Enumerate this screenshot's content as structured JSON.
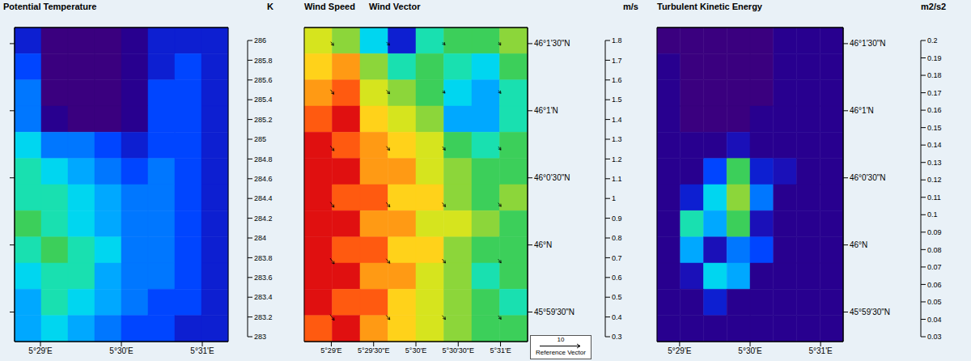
{
  "chart_data": [
    {
      "type": "heatmap",
      "title": "Potential Temperature",
      "xlim": [
        5.478,
        5.522
      ],
      "ylim": [
        45.988,
        46.027
      ],
      "xticks": [
        {
          "value": 5.483333,
          "label": "5°29'E"
        },
        {
          "value": 5.5,
          "label": "5°30'E"
        },
        {
          "value": 5.516667,
          "label": "5°31'E"
        }
      ],
      "yticks": [
        {
          "value": 45.991667,
          "label": "45°59'30\"N"
        },
        {
          "value": 46,
          "label": "46°N"
        },
        {
          "value": 46.008333,
          "label": "46°0'30\"N"
        },
        {
          "value": 46.016667,
          "label": "46°1'N"
        },
        {
          "value": 46.025,
          "label": "46°1'30\"N"
        }
      ],
      "tick_labels": "x",
      "lon_edges": [
        5.478,
        5.4835,
        5.489,
        5.4945,
        5.5,
        5.5055,
        5.511,
        5.5165,
        5.522
      ],
      "lat_edges": [
        46.027,
        46.02375,
        46.0205,
        46.01725,
        46.014,
        46.01075,
        46.0075,
        46.00425,
        46.001,
        45.99775,
        45.9945,
        45.99125,
        45.988
      ],
      "cells": [
        [
          283.5,
          283.1,
          283.1,
          283.1,
          283.3,
          283.5,
          283.5,
          283.5
        ],
        [
          283.7,
          283.1,
          283.0,
          283.1,
          283.2,
          283.5,
          283.6,
          283.5
        ],
        [
          283.8,
          283.1,
          283.0,
          283.0,
          283.2,
          283.6,
          283.7,
          283.5
        ],
        [
          283.9,
          283.2,
          283.1,
          283.1,
          283.3,
          283.6,
          283.6,
          283.5
        ],
        [
          284.2,
          283.9,
          283.8,
          283.7,
          283.5,
          283.7,
          283.6,
          283.4
        ],
        [
          284.4,
          284.3,
          284.1,
          283.9,
          283.7,
          283.8,
          283.7,
          283.5
        ],
        [
          284.5,
          284.4,
          284.2,
          284.0,
          283.8,
          283.8,
          283.6,
          283.5
        ],
        [
          284.6,
          284.5,
          284.3,
          284.1,
          283.9,
          283.9,
          283.7,
          283.5
        ],
        [
          284.4,
          284.6,
          284.4,
          284.2,
          283.9,
          283.8,
          283.7,
          283.5
        ],
        [
          284.3,
          284.5,
          284.4,
          284.1,
          283.8,
          283.8,
          283.6,
          283.5
        ],
        [
          284.1,
          284.4,
          284.3,
          284.0,
          283.8,
          283.7,
          283.6,
          283.5
        ],
        [
          284.0,
          284.2,
          284.1,
          283.9,
          283.7,
          283.7,
          283.5,
          283.4
        ]
      ],
      "colorbar": {
        "label": "K",
        "ylim": [
          283,
          286
        ],
        "yticks": [
          283,
          283.2,
          283.4,
          283.6,
          283.8,
          284,
          284.2,
          284.4,
          284.6,
          284.8,
          285,
          285.2,
          285.4,
          285.6,
          285.8,
          286
        ],
        "colors": [
          "#3a007f",
          "#28008f",
          "#0d1fd1",
          "#0045ff",
          "#0077ff",
          "#00a8ff",
          "#00d6f0",
          "#19e0b0",
          "#3ccf5a",
          "#8cd63a",
          "#d6e41e",
          "#ffd21a",
          "#ff9a14",
          "#ff5a10",
          "#e01010"
        ]
      }
    },
    {
      "type": "heatmap",
      "title": "Wind Speed",
      "subtitle": "Wind Vector",
      "xlim": [
        5.478,
        5.522
      ],
      "ylim": [
        45.988,
        46.027
      ],
      "xticks": [
        {
          "value": 5.483333,
          "label": "5°29'E"
        },
        {
          "value": 5.491667,
          "label": "5°29'30\"E"
        },
        {
          "value": 5.5,
          "label": "5°30'E"
        },
        {
          "value": 5.508333,
          "label": "5°30'30\"E"
        },
        {
          "value": 5.516667,
          "label": "5°31'E"
        }
      ],
      "yticks": [
        {
          "value": 45.991667,
          "label": "45°59'30\"N"
        },
        {
          "value": 46,
          "label": "46°N"
        },
        {
          "value": 46.008333,
          "label": "46°0'30\"N"
        },
        {
          "value": 46.016667,
          "label": "46°1'N"
        },
        {
          "value": 46.025,
          "label": "46°1'30\"N"
        }
      ],
      "lon_edges": [
        5.478,
        5.4835,
        5.489,
        5.4945,
        5.5,
        5.5055,
        5.511,
        5.5165,
        5.522
      ],
      "lat_edges": [
        46.027,
        46.02375,
        46.0205,
        46.01725,
        46.014,
        46.01075,
        46.0075,
        46.00425,
        46.001,
        45.99775,
        45.9945,
        45.99125,
        45.988
      ],
      "cells": [
        [
          1.3,
          1.2,
          0.9,
          0.5,
          1.0,
          1.1,
          1.1,
          1.2
        ],
        [
          1.4,
          1.5,
          1.2,
          1.0,
          1.1,
          1.0,
          0.9,
          1.1
        ],
        [
          1.5,
          1.6,
          1.3,
          1.2,
          1.1,
          0.9,
          0.8,
          1.0
        ],
        [
          1.6,
          1.7,
          1.4,
          1.3,
          1.2,
          0.8,
          0.8,
          1.0
        ],
        [
          1.7,
          1.6,
          1.5,
          1.4,
          1.3,
          1.1,
          1.0,
          1.1
        ],
        [
          1.7,
          1.7,
          1.5,
          1.5,
          1.3,
          1.2,
          1.1,
          1.1
        ],
        [
          1.8,
          1.6,
          1.6,
          1.4,
          1.4,
          1.2,
          1.1,
          1.2
        ],
        [
          1.7,
          1.7,
          1.5,
          1.5,
          1.3,
          1.3,
          1.2,
          1.1
        ],
        [
          1.8,
          1.6,
          1.6,
          1.4,
          1.4,
          1.2,
          1.1,
          1.1
        ],
        [
          1.7,
          1.7,
          1.5,
          1.5,
          1.3,
          1.2,
          1.0,
          1.1
        ],
        [
          1.8,
          1.6,
          1.6,
          1.4,
          1.3,
          1.2,
          1.1,
          1.0
        ],
        [
          1.6,
          1.7,
          1.5,
          1.4,
          1.3,
          1.2,
          1.1,
          1.1
        ]
      ],
      "vectors": {
        "lon": [
          5.4835,
          5.4945,
          5.5055,
          5.5165
        ],
        "lat": [
          46.025,
          46.019,
          46.012,
          46.005,
          45.998,
          45.991
        ],
        "u": [
          [
            0.7,
            0.8,
            0.6,
            0.5
          ],
          [
            0.8,
            0.8,
            0.6,
            0.6
          ],
          [
            0.9,
            0.8,
            0.7,
            0.6
          ],
          [
            0.9,
            0.9,
            0.8,
            0.7
          ],
          [
            1.0,
            0.9,
            0.8,
            0.7
          ],
          [
            1.0,
            0.9,
            0.8,
            0.7
          ]
        ],
        "v": [
          [
            -0.9,
            -0.8,
            -0.6,
            -0.8
          ],
          [
            -1.1,
            -0.9,
            -0.6,
            -0.7
          ],
          [
            -1.2,
            -1.0,
            -0.9,
            -0.8
          ],
          [
            -1.3,
            -1.1,
            -1.0,
            -0.9
          ],
          [
            -1.4,
            -1.1,
            -1.0,
            -0.9
          ],
          [
            -1.4,
            -1.1,
            -1.0,
            -0.9
          ]
        ]
      },
      "reference_vector": {
        "value": 10,
        "label": "Reference Vector"
      },
      "colorbar": {
        "label": "m/s",
        "ylim": [
          0.3,
          1.8
        ],
        "yticks": [
          0.3,
          0.4,
          0.5,
          0.6,
          0.7,
          0.8,
          0.9,
          1,
          1.1,
          1.2,
          1.3,
          1.4,
          1.5,
          1.6,
          1.7,
          1.8
        ],
        "colors": [
          "#3a007f",
          "#28008f",
          "#0d1fd1",
          "#0045ff",
          "#0077ff",
          "#00a8ff",
          "#00d6f0",
          "#19e0b0",
          "#3ccf5a",
          "#8cd63a",
          "#d6e41e",
          "#ffd21a",
          "#ff9a14",
          "#ff5a10",
          "#e01010"
        ]
      }
    },
    {
      "type": "heatmap",
      "title": "Turbulent Kinetic Energy",
      "xlim": [
        5.478,
        5.522
      ],
      "ylim": [
        45.988,
        46.027
      ],
      "xticks": [
        {
          "value": 5.483333,
          "label": "5°29'E"
        },
        {
          "value": 5.5,
          "label": "5°30'E"
        },
        {
          "value": 5.516667,
          "label": "5°31'E"
        }
      ],
      "yticks": [
        {
          "value": 45.991667,
          "label": "45°59'30\"N"
        },
        {
          "value": 46,
          "label": "46°N"
        },
        {
          "value": 46.008333,
          "label": "46°0'30\"N"
        },
        {
          "value": 46.016667,
          "label": "46°1'N"
        },
        {
          "value": 46.025,
          "label": "46°1'30\"N"
        }
      ],
      "lon_edges": [
        5.478,
        5.4835,
        5.489,
        5.4945,
        5.5,
        5.5055,
        5.511,
        5.5165,
        5.522
      ],
      "lat_edges": [
        46.027,
        46.02375,
        46.0205,
        46.01725,
        46.014,
        46.01075,
        46.0075,
        46.00425,
        46.001,
        45.99775,
        45.9945,
        45.99125,
        45.988
      ],
      "cells": [
        [
          0.03,
          0.03,
          0.03,
          0.03,
          0.03,
          0.04,
          0.04,
          0.04
        ],
        [
          0.04,
          0.03,
          0.03,
          0.03,
          0.03,
          0.04,
          0.04,
          0.04
        ],
        [
          0.04,
          0.03,
          0.03,
          0.03,
          0.03,
          0.04,
          0.04,
          0.04
        ],
        [
          0.04,
          0.03,
          0.03,
          0.03,
          0.04,
          0.04,
          0.04,
          0.04
        ],
        [
          0.04,
          0.04,
          0.04,
          0.05,
          0.04,
          0.04,
          0.04,
          0.04
        ],
        [
          0.04,
          0.04,
          0.07,
          0.12,
          0.06,
          0.05,
          0.04,
          0.04
        ],
        [
          0.04,
          0.06,
          0.1,
          0.13,
          0.08,
          0.04,
          0.04,
          0.04
        ],
        [
          0.04,
          0.11,
          0.09,
          0.12,
          0.05,
          0.04,
          0.04,
          0.04
        ],
        [
          0.04,
          0.09,
          0.05,
          0.08,
          0.07,
          0.04,
          0.04,
          0.04
        ],
        [
          0.04,
          0.05,
          0.1,
          0.09,
          0.04,
          0.04,
          0.04,
          0.04
        ],
        [
          0.04,
          0.04,
          0.06,
          0.04,
          0.04,
          0.04,
          0.04,
          0.04
        ],
        [
          0.04,
          0.04,
          0.04,
          0.04,
          0.04,
          0.04,
          0.04,
          0.04
        ]
      ],
      "colorbar": {
        "label": "m2/s2",
        "ylim": [
          0.03,
          0.2
        ],
        "yticks": [
          0.03,
          0.04,
          0.05,
          0.06,
          0.07,
          0.08,
          0.09,
          0.1,
          0.11,
          0.12,
          0.13,
          0.14,
          0.15,
          0.16,
          0.17,
          0.18,
          0.19,
          0.2
        ],
        "colors": [
          "#3a007f",
          "#28008f",
          "#1a10b8",
          "#0d1fd1",
          "#0045ff",
          "#0077ff",
          "#00a8ff",
          "#00d6f0",
          "#19e0b0",
          "#3ccf5a",
          "#8cd63a",
          "#d6e41e",
          "#ffd21a",
          "#ff9a14",
          "#ff5a10",
          "#e01010",
          "#b00000"
        ]
      }
    }
  ]
}
